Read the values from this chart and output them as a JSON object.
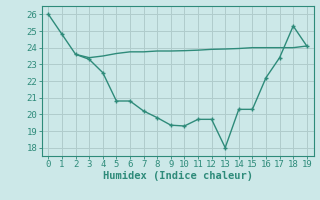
{
  "line1_x": [
    0,
    1,
    2,
    3,
    4,
    5,
    6,
    7,
    8,
    9,
    10,
    11,
    12,
    13,
    14,
    15,
    16,
    17,
    18,
    19
  ],
  "line1_y": [
    26.0,
    24.8,
    23.6,
    23.3,
    22.5,
    20.8,
    20.8,
    20.2,
    19.8,
    19.35,
    19.3,
    19.7,
    19.7,
    18.0,
    20.3,
    20.3,
    22.2,
    23.4,
    25.3,
    24.1
  ],
  "line2_x": [
    2,
    3,
    4,
    5,
    6,
    7,
    8,
    9,
    10,
    11,
    12,
    13,
    14,
    15,
    16,
    17,
    18,
    19
  ],
  "line2_y": [
    23.6,
    23.4,
    23.5,
    23.65,
    23.75,
    23.75,
    23.8,
    23.8,
    23.82,
    23.85,
    23.9,
    23.92,
    23.95,
    24.0,
    24.0,
    24.0,
    24.0,
    24.1
  ],
  "line_color": "#2e8b7a",
  "bg_color": "#cce8e8",
  "grid_color": "#b0cccc",
  "xlabel": "Humidex (Indice chaleur)",
  "ylim": [
    17.5,
    26.5
  ],
  "xlim": [
    -0.5,
    19.5
  ],
  "yticks": [
    18,
    19,
    20,
    21,
    22,
    23,
    24,
    25,
    26
  ],
  "xticks": [
    0,
    1,
    2,
    3,
    4,
    5,
    6,
    7,
    8,
    9,
    10,
    11,
    12,
    13,
    14,
    15,
    16,
    17,
    18,
    19
  ],
  "tick_fontsize": 6.5,
  "xlabel_fontsize": 7.5
}
